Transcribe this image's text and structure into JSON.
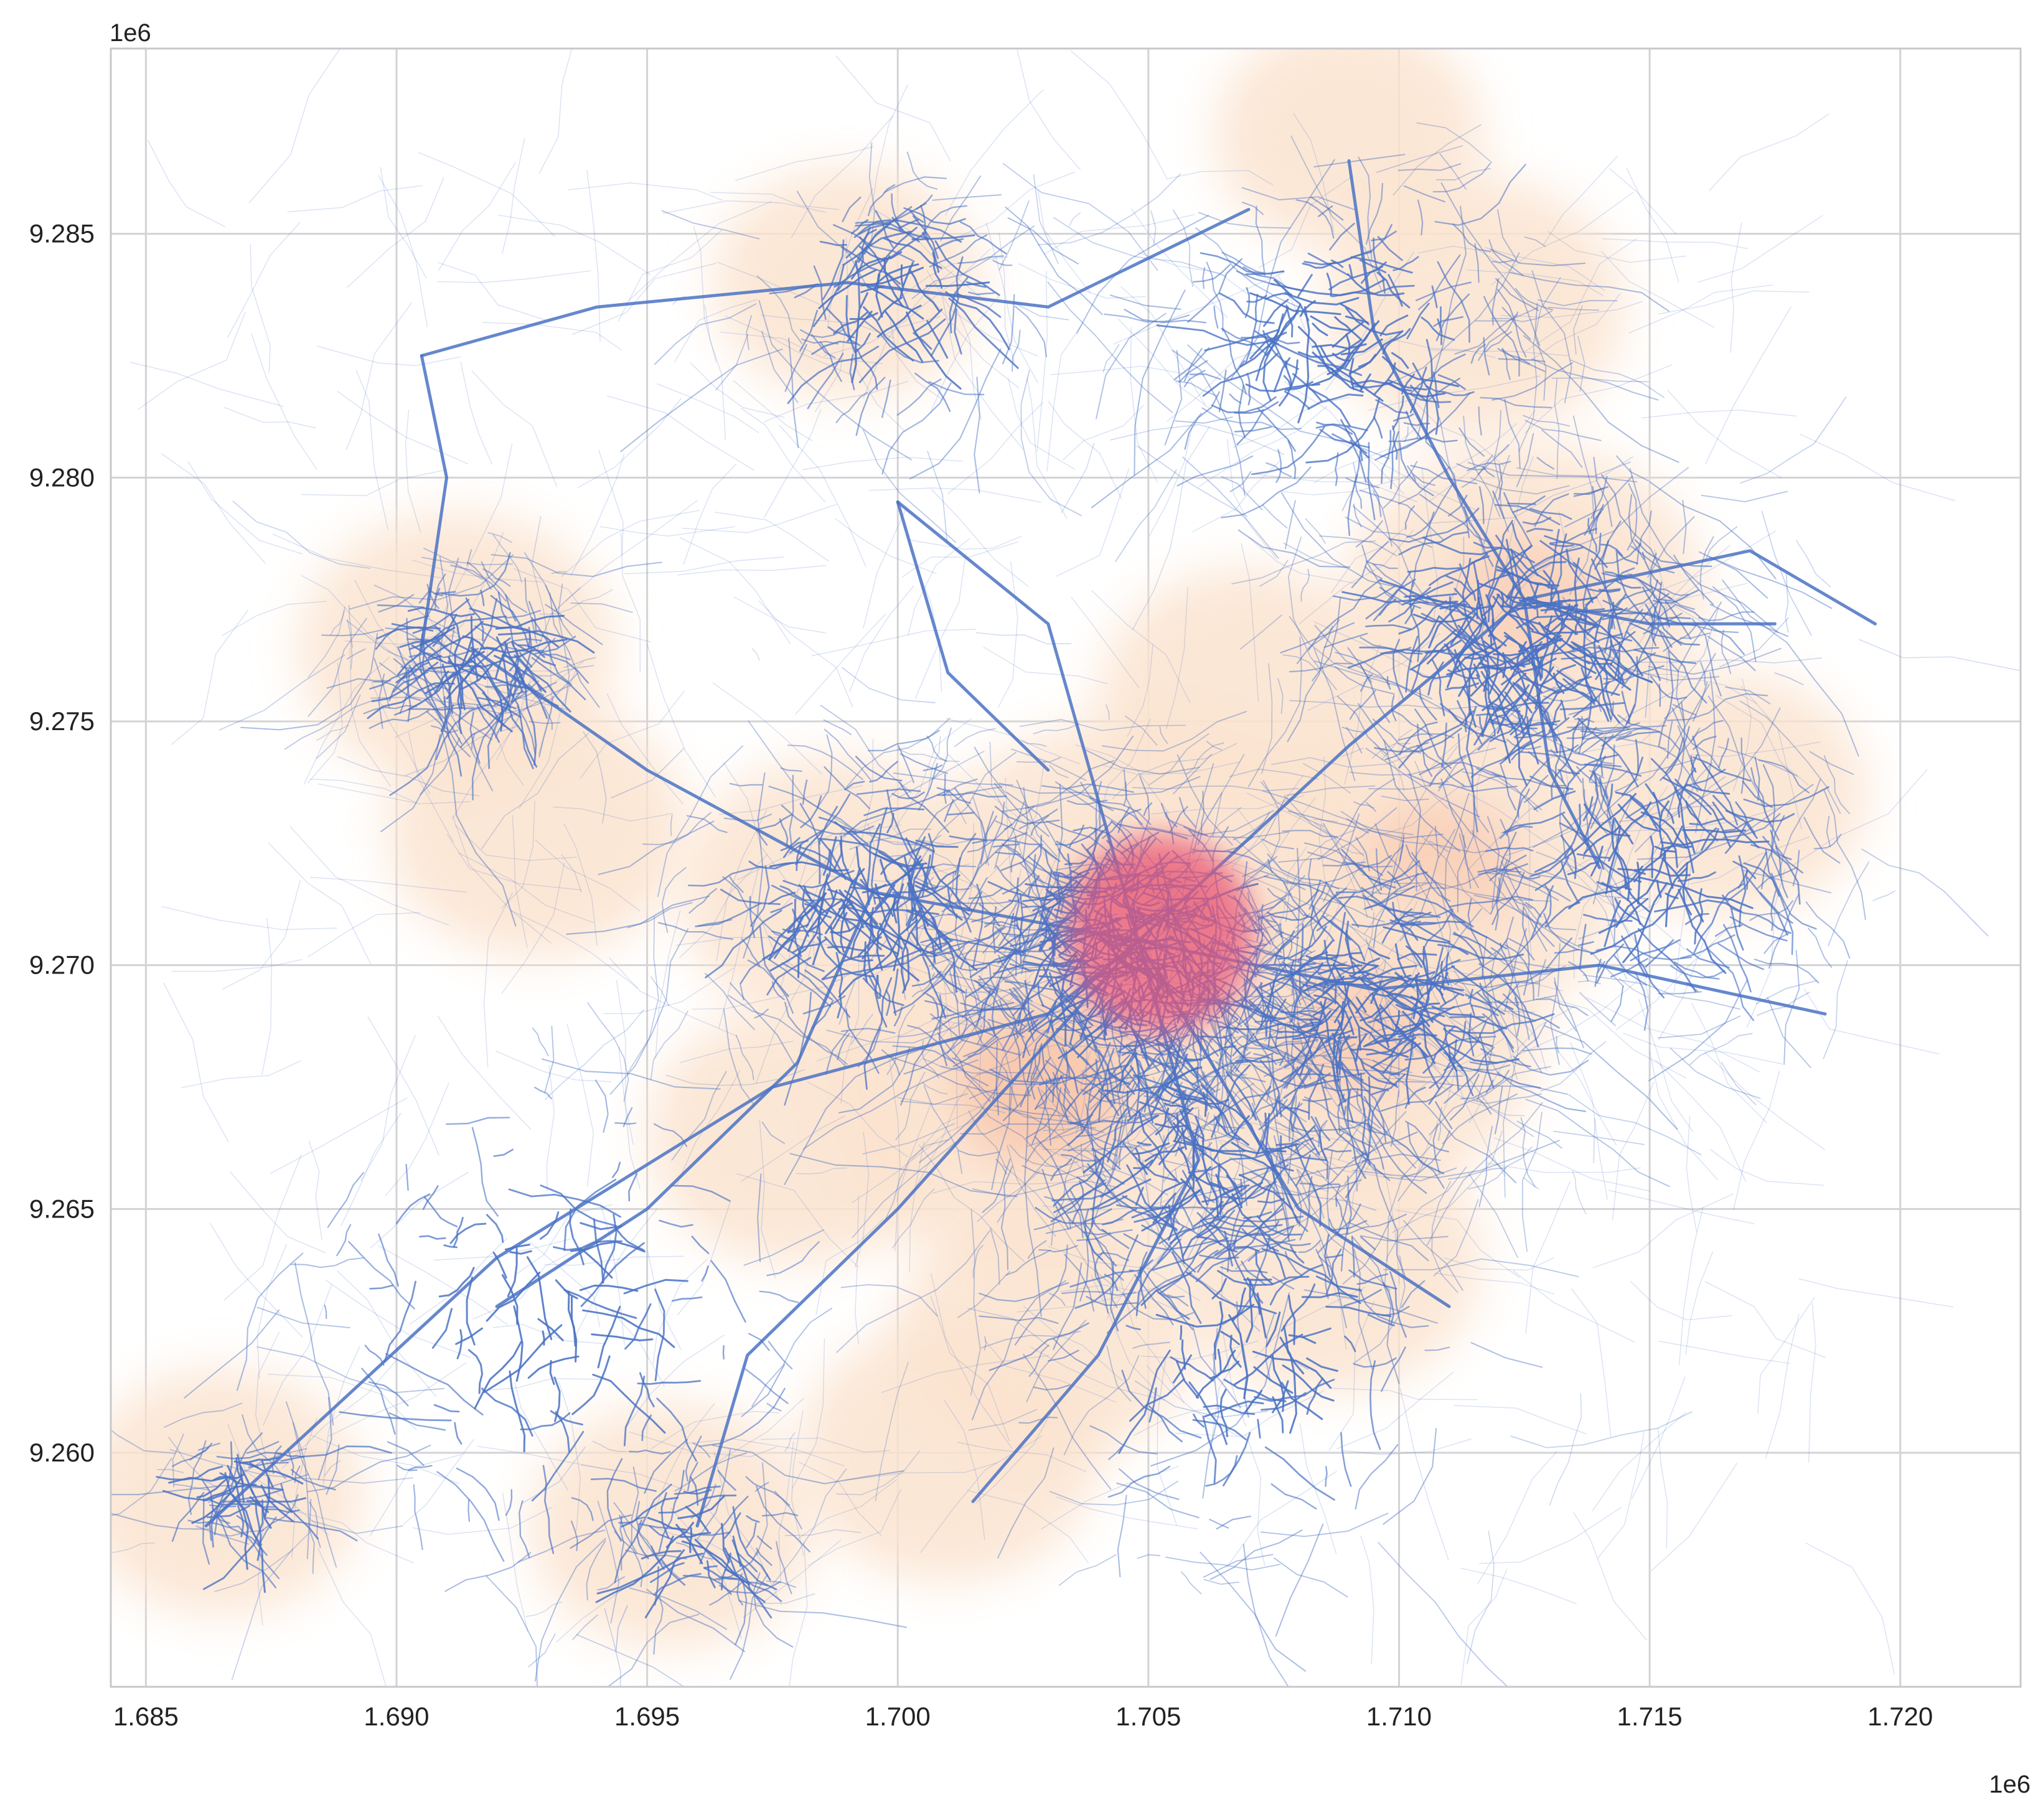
{
  "chart_data": {
    "type": "map",
    "title": "",
    "xlabel": "",
    "ylabel": "",
    "x_offset_label": "1e6",
    "y_offset_label": "1e6",
    "xlim": [
      1.6843,
      1.7224
    ],
    "ylim": [
      9.2552,
      9.2888
    ],
    "x_ticks": [
      {
        "value": 1.685,
        "label": "1.685"
      },
      {
        "value": 1.69,
        "label": "1.690"
      },
      {
        "value": 1.695,
        "label": "1.695"
      },
      {
        "value": 1.7,
        "label": "1.700"
      },
      {
        "value": 1.705,
        "label": "1.705"
      },
      {
        "value": 1.71,
        "label": "1.710"
      },
      {
        "value": 1.715,
        "label": "1.715"
      },
      {
        "value": 1.72,
        "label": "1.720"
      }
    ],
    "y_ticks": [
      {
        "value": 9.26,
        "label": "9.260"
      },
      {
        "value": 9.265,
        "label": "9.265"
      },
      {
        "value": 9.27,
        "label": "9.270"
      },
      {
        "value": 9.275,
        "label": "9.275"
      },
      {
        "value": 9.28,
        "label": "9.280"
      },
      {
        "value": 9.285,
        "label": "9.285"
      }
    ],
    "grid": true,
    "layers": [
      "road network lines",
      "kernel density heatmap"
    ],
    "colors": {
      "road": "#4a72c4",
      "density_low": "#fbe3cf",
      "density_mid": "#f4a07a",
      "density_high": "#e8577a",
      "grid": "#d3d3d6"
    },
    "density_hotspots": [
      {
        "x": 1.705,
        "y": 9.2705,
        "level": 1.0
      },
      {
        "x": 1.7028,
        "y": 9.2675,
        "level": 0.7
      },
      {
        "x": 1.7108,
        "y": 9.272,
        "level": 0.55
      },
      {
        "x": 1.7125,
        "y": 9.2775,
        "level": 0.5
      },
      {
        "x": 1.7092,
        "y": 9.2685,
        "level": 0.5
      },
      {
        "x": 1.6988,
        "y": 9.2715,
        "level": 0.35
      },
      {
        "x": 1.7085,
        "y": 9.264,
        "level": 0.35
      },
      {
        "x": 1.703,
        "y": 9.2625,
        "level": 0.3
      },
      {
        "x": 1.701,
        "y": 9.26,
        "level": 0.3
      },
      {
        "x": 1.7115,
        "y": 9.2835,
        "level": 0.3
      },
      {
        "x": 1.6912,
        "y": 9.2765,
        "level": 0.35
      },
      {
        "x": 1.6928,
        "y": 9.2728,
        "level": 0.3
      },
      {
        "x": 1.698,
        "y": 9.2665,
        "level": 0.3
      },
      {
        "x": 1.7165,
        "y": 9.2735,
        "level": 0.25
      },
      {
        "x": 1.6865,
        "y": 9.2592,
        "level": 0.25
      },
      {
        "x": 1.6955,
        "y": 9.2585,
        "level": 0.25
      },
      {
        "x": 1.699,
        "y": 9.284,
        "level": 0.2
      },
      {
        "x": 1.709,
        "y": 9.287,
        "level": 0.2
      },
      {
        "x": 1.707,
        "y": 9.2755,
        "level": 0.3
      }
    ],
    "network_hubs": [
      {
        "x": 1.7045,
        "y": 9.2705,
        "weight": 1.0,
        "spread": 0.0042
      },
      {
        "x": 1.7125,
        "y": 9.277,
        "weight": 0.75,
        "spread": 0.0045
      },
      {
        "x": 1.7095,
        "y": 9.2695,
        "weight": 0.7,
        "spread": 0.004
      },
      {
        "x": 1.709,
        "y": 9.283,
        "weight": 0.45,
        "spread": 0.004
      },
      {
        "x": 1.6995,
        "y": 9.2715,
        "weight": 0.45,
        "spread": 0.004
      },
      {
        "x": 1.706,
        "y": 9.2665,
        "weight": 0.45,
        "spread": 0.0045
      },
      {
        "x": 1.6915,
        "y": 9.2765,
        "weight": 0.3,
        "spread": 0.0022
      },
      {
        "x": 1.7,
        "y": 9.284,
        "weight": 0.25,
        "spread": 0.003
      },
      {
        "x": 1.715,
        "y": 9.2725,
        "weight": 0.35,
        "spread": 0.004
      },
      {
        "x": 1.693,
        "y": 9.263,
        "weight": 0.25,
        "spread": 0.006
      },
      {
        "x": 1.707,
        "y": 9.2625,
        "weight": 0.3,
        "spread": 0.005
      },
      {
        "x": 1.687,
        "y": 9.2595,
        "weight": 0.12,
        "spread": 0.0015
      },
      {
        "x": 1.696,
        "y": 9.2585,
        "weight": 0.15,
        "spread": 0.002
      }
    ],
    "major_roads": [
      [
        [
          1.6862,
          9.2585
        ],
        [
          1.692,
          9.264
        ],
        [
          1.6975,
          9.2675
        ],
        [
          1.703,
          9.269
        ],
        [
          1.7048,
          9.2705
        ]
      ],
      [
        [
          1.7048,
          9.2705
        ],
        [
          1.709,
          9.2745
        ],
        [
          1.7125,
          9.2775
        ],
        [
          1.717,
          9.2785
        ],
        [
          1.7195,
          9.277
        ]
      ],
      [
        [
          1.6915,
          9.2765
        ],
        [
          1.695,
          9.274
        ],
        [
          1.6995,
          9.2715
        ],
        [
          1.7048,
          9.2705
        ]
      ],
      [
        [
          1.7,
          9.2795
        ],
        [
          1.703,
          9.277
        ],
        [
          1.7048,
          9.2705
        ]
      ],
      [
        [
          1.7048,
          9.2705
        ],
        [
          1.706,
          9.266
        ],
        [
          1.704,
          9.262
        ],
        [
          1.7015,
          9.259
        ]
      ],
      [
        [
          1.7048,
          9.2705
        ],
        [
          1.7095,
          9.2695
        ],
        [
          1.714,
          9.27
        ],
        [
          1.7185,
          9.269
        ]
      ],
      [
        [
          1.709,
          9.2865
        ],
        [
          1.7095,
          9.283
        ],
        [
          1.711,
          9.28
        ],
        [
          1.7125,
          9.2775
        ],
        [
          1.713,
          9.274
        ],
        [
          1.714,
          9.272
        ]
      ],
      [
        [
          1.696,
          9.2585
        ],
        [
          1.697,
          9.262
        ],
        [
          1.7,
          9.265
        ],
        [
          1.7048,
          9.2705
        ]
      ],
      [
        [
          1.7048,
          9.2705
        ],
        [
          1.708,
          9.265
        ],
        [
          1.711,
          9.263
        ]
      ],
      [
        [
          1.6905,
          9.2825
        ],
        [
          1.694,
          9.2835
        ],
        [
          1.699,
          9.284
        ],
        [
          1.703,
          9.2835
        ],
        [
          1.707,
          9.2855
        ]
      ],
      [
        [
          1.6905,
          9.2825
        ],
        [
          1.691,
          9.28
        ],
        [
          1.6905,
          9.2765
        ]
      ],
      [
        [
          1.7125,
          9.2775
        ],
        [
          1.715,
          9.277
        ],
        [
          1.7175,
          9.277
        ]
      ],
      [
        [
          1.7,
          9.2795
        ],
        [
          1.701,
          9.276
        ],
        [
          1.703,
          9.274
        ]
      ],
      [
        [
          1.6995,
          9.2715
        ],
        [
          1.698,
          9.268
        ],
        [
          1.695,
          9.265
        ],
        [
          1.692,
          9.263
        ]
      ]
    ]
  }
}
